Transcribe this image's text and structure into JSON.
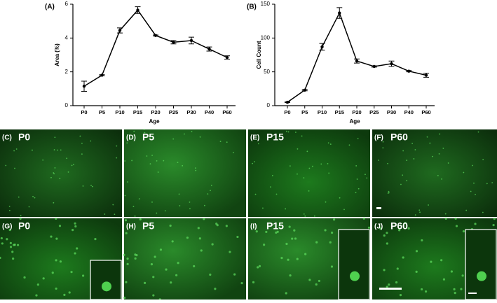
{
  "chart_data": [
    {
      "type": "line",
      "panel": "(A)",
      "x_label": "Age",
      "y_label": "Area (%)",
      "categories": [
        "P0",
        "P5",
        "P10",
        "P15",
        "P20",
        "P25",
        "P30",
        "P40",
        "P60"
      ],
      "values": [
        1.15,
        1.8,
        4.45,
        5.65,
        4.15,
        3.75,
        3.85,
        3.35,
        2.85
      ],
      "errors": [
        0.3,
        0.03,
        0.15,
        0.2,
        0.03,
        0.1,
        0.2,
        0.12,
        0.1
      ],
      "color": "#000000",
      "ylim": [
        0,
        6
      ],
      "yticks": [
        0,
        2,
        4,
        6
      ]
    },
    {
      "type": "line",
      "panel": "(B)",
      "x_label": "Age",
      "y_label": "Cell Count",
      "categories": [
        "P0",
        "P5",
        "P10",
        "P15",
        "P20",
        "P25",
        "P30",
        "P40",
        "P60"
      ],
      "values": [
        5,
        23,
        87,
        137,
        66,
        58,
        62,
        51,
        45
      ],
      "errors": [
        0.5,
        1,
        5,
        8,
        3,
        1,
        4,
        1,
        3
      ],
      "color": "#000000",
      "ylim": [
        0,
        150
      ],
      "yticks": [
        0,
        50,
        100,
        150
      ]
    }
  ],
  "panels": [
    {
      "letter": "(C)",
      "label": "P0"
    },
    {
      "letter": "(D)",
      "label": "P5"
    },
    {
      "letter": "(E)",
      "label": "P15"
    },
    {
      "letter": "(F)",
      "label": "P60"
    },
    {
      "letter": "(G)",
      "label": "P0"
    },
    {
      "letter": "(H)",
      "label": "P5"
    },
    {
      "letter": "(I)",
      "label": "P15"
    },
    {
      "letter": "(J)",
      "label": "P60"
    }
  ]
}
